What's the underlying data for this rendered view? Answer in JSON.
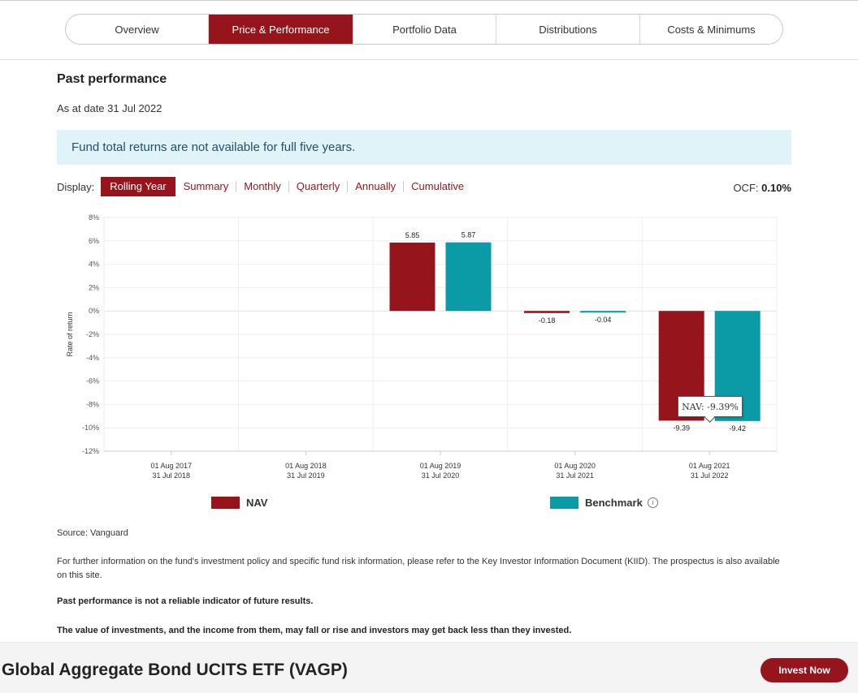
{
  "tabs": [
    {
      "label": "Overview"
    },
    {
      "label": "Price & Performance"
    },
    {
      "label": "Portfolio Data"
    },
    {
      "label": "Distributions"
    },
    {
      "label": "Costs & Minimums"
    }
  ],
  "section": {
    "title": "Past performance",
    "as_at": "As at date 31 Jul 2022",
    "notice": "Fund total returns are not available for full five years."
  },
  "display": {
    "label": "Display:",
    "filters": [
      "Rolling Year",
      "Summary",
      "Monthly",
      "Quarterly",
      "Annually",
      "Cumulative"
    ],
    "ocf_label": "OCF:",
    "ocf_value": "0.10%"
  },
  "colors": {
    "nav": "#96151d",
    "benchmark": "#0a9ba6"
  },
  "chart_data": {
    "type": "bar",
    "ylabel": "Rate of return",
    "ylim": [
      -12,
      8
    ],
    "yticks": [
      8,
      6,
      4,
      2,
      0,
      -2,
      -4,
      -6,
      -8,
      -10,
      -12
    ],
    "categories": [
      [
        "01 Aug 2017",
        "31 Jul 2018"
      ],
      [
        "01 Aug 2018",
        "31 Jul 2019"
      ],
      [
        "01 Aug 2019",
        "31 Jul 2020"
      ],
      [
        "01 Aug 2020",
        "31 Jul 2021"
      ],
      [
        "01 Aug 2021",
        "31 Jul 2022"
      ]
    ],
    "series": [
      {
        "name": "NAV",
        "values": [
          null,
          null,
          5.85,
          -0.18,
          -9.39
        ]
      },
      {
        "name": "Benchmark",
        "values": [
          null,
          null,
          5.87,
          -0.04,
          -9.42
        ]
      }
    ],
    "tooltip": "NAV: -9.39%"
  },
  "legend": {
    "nav": "NAV",
    "benchmark": "Benchmark",
    "info": "i"
  },
  "notes": {
    "source": "Source: Vanguard",
    "further": "For further information on the fund's investment policy and specific fund risk information, please refer to the Key Investor Information Document (KIID). The prospectus is also available on this site.",
    "warning1": "Past performance is not a reliable indicator of future results.",
    "warning2": "The value of investments, and the income from them, may fall or rise and investors may get back less than they invested."
  },
  "footer": {
    "fund_name": "Global Aggregate Bond UCITS ETF (VAGP)",
    "invest_label": "Invest Now"
  }
}
